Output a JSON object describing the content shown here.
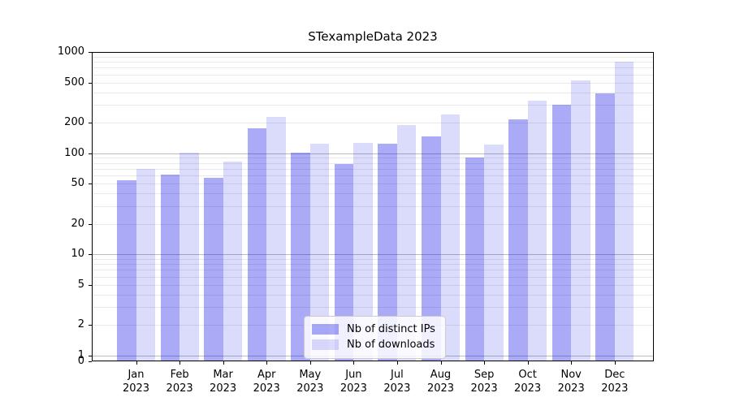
{
  "chart_data": {
    "type": "bar",
    "title": "STexampleData 2023",
    "xlabel": "",
    "ylabel": "",
    "yscale": "symlog",
    "ylim": [
      0,
      1000
    ],
    "y_ticks": [
      0,
      1,
      2,
      5,
      10,
      20,
      50,
      100,
      200,
      500,
      1000
    ],
    "grid": "horizontal major and minor gridlines, drawn behind translucent bars",
    "categories": [
      "Jan 2023",
      "Feb 2023",
      "Mar 2023",
      "Apr 2023",
      "May 2023",
      "Jun 2023",
      "Jul 2023",
      "Aug 2023",
      "Sep 2023",
      "Oct 2023",
      "Nov 2023",
      "Dec 2023"
    ],
    "series": [
      {
        "name": "Nb of distinct IPs",
        "color": "#0505e557",
        "color_on_white": "#abaaf6",
        "values": [
          54,
          61,
          57,
          175,
          101,
          78,
          124,
          145,
          90,
          215,
          300,
          390
        ]
      },
      {
        "name": "Nb of downloads",
        "color": "#0505e525",
        "color_on_white": "#dcdbfb",
        "values": [
          70,
          101,
          83,
          228,
          124,
          127,
          188,
          240,
          121,
          330,
          525,
          800
        ]
      }
    ],
    "legend": {
      "position": "lower center inside plot",
      "entries": [
        "Nb of distinct IPs",
        "Nb of downloads"
      ]
    }
  }
}
